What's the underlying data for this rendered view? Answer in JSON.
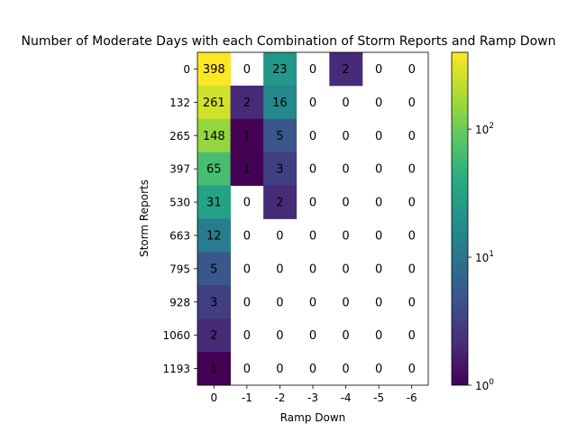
{
  "chart_data": {
    "type": "heatmap",
    "title": "Number of Moderate Days with each Combination of Storm Reports and Ramp Down",
    "xlabel": "Ramp Down",
    "ylabel": "Storm Reports",
    "x_categories": [
      "0",
      "-1",
      "-2",
      "-3",
      "-4",
      "-5",
      "-6"
    ],
    "y_categories": [
      "0",
      "132",
      "265",
      "397",
      "530",
      "663",
      "795",
      "928",
      "1060",
      "1193"
    ],
    "values": [
      [
        398,
        0,
        23,
        0,
        2,
        0,
        0
      ],
      [
        261,
        2,
        16,
        0,
        0,
        0,
        0
      ],
      [
        148,
        1,
        5,
        0,
        0,
        0,
        0
      ],
      [
        65,
        1,
        3,
        0,
        0,
        0,
        0
      ],
      [
        31,
        0,
        2,
        0,
        0,
        0,
        0
      ],
      [
        12,
        0,
        0,
        0,
        0,
        0,
        0
      ],
      [
        5,
        0,
        0,
        0,
        0,
        0,
        0
      ],
      [
        3,
        0,
        0,
        0,
        0,
        0,
        0
      ],
      [
        2,
        0,
        0,
        0,
        0,
        0,
        0
      ],
      [
        1,
        0,
        0,
        0,
        0,
        0,
        0
      ]
    ],
    "zero_cells": "blank (white)",
    "colormap": "viridis",
    "color_scale": "log",
    "colorbar": {
      "range": [
        1,
        398
      ],
      "tick_values": [
        1,
        10,
        100
      ],
      "tick_labels": [
        {
          "base": "10",
          "exp": "0"
        },
        {
          "base": "10",
          "exp": "1"
        },
        {
          "base": "10",
          "exp": "2"
        }
      ]
    }
  }
}
